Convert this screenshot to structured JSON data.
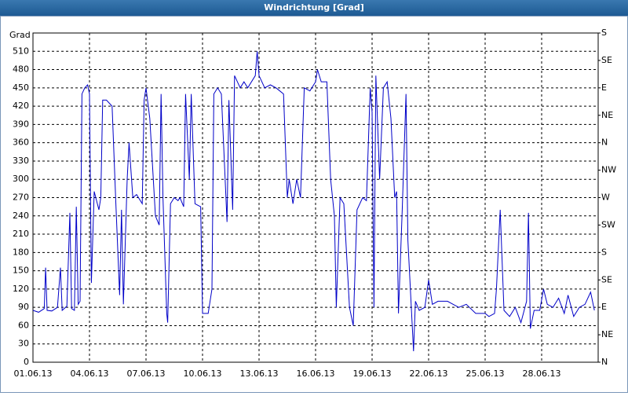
{
  "chart_data": {
    "type": "line",
    "title": "Windrichtung [Grad]",
    "y_label": "Grad",
    "x": [
      0,
      0.3,
      0.6,
      0.67,
      0.75,
      1,
      1.3,
      1.46,
      1.55,
      1.8,
      1.96,
      2.05,
      2.2,
      2.3,
      2.4,
      2.5,
      2.6,
      2.75,
      2.9,
      3,
      3.1,
      3.25,
      3.5,
      3.6,
      3.7,
      3.9,
      4.2,
      4.4,
      4.6,
      4.7,
      4.8,
      5,
      5.1,
      5.3,
      5.5,
      5.8,
      5.9,
      6,
      6.2,
      6.5,
      6.7,
      6.8,
      6.9,
      7.1,
      7.15,
      7.3,
      7.5,
      7.7,
      7.8,
      8,
      8.1,
      8.3,
      8.4,
      8.6,
      8.9,
      9,
      9.3,
      9.5,
      9.6,
      9.8,
      10,
      10.3,
      10.4,
      10.6,
      10.7,
      11,
      11.2,
      11.4,
      11.8,
      11.9,
      12,
      12.3,
      12.6,
      12.9,
      13.1,
      13.3,
      13.5,
      13.6,
      13.8,
      14,
      14.2,
      14.4,
      14.7,
      15,
      15.1,
      15.3,
      15.6,
      15.8,
      16,
      16.1,
      16.3,
      16.5,
      16.8,
      17,
      17.2,
      17.5,
      17.7,
      17.9,
      18,
      18.1,
      18.2,
      18.4,
      18.6,
      18.8,
      19,
      19.2,
      19.3,
      19.4,
      19.6,
      19.8,
      19.9,
      20.2,
      20.3,
      20.5,
      20.8,
      21,
      21.2,
      21.5,
      22,
      22.3,
      22.6,
      23,
      23.5,
      24,
      24.2,
      24.5,
      24.6,
      24.8,
      25,
      25.3,
      25.6,
      25.9,
      26.2,
      26.3,
      26.4,
      26.6,
      26.9,
      27.1,
      27.3,
      27.6,
      27.9,
      28.2,
      28.4,
      28.7,
      29,
      29.3,
      29.6,
      29.8
    ],
    "series": [
      {
        "name": "Windrichtung",
        "color": "#0000c8",
        "values": [
          85,
          82,
          88,
          155,
          85,
          84,
          90,
          155,
          85,
          92,
          245,
          88,
          85,
          255,
          95,
          100,
          440,
          450,
          455,
          440,
          130,
          280,
          250,
          270,
          430,
          430,
          420,
          260,
          110,
          250,
          95,
          300,
          360,
          270,
          275,
          260,
          430,
          450,
          400,
          240,
          225,
          440,
          270,
          80,
          65,
          260,
          270,
          265,
          270,
          255,
          440,
          300,
          440,
          260,
          255,
          80,
          80,
          120,
          440,
          450,
          440,
          230,
          430,
          250,
          470,
          450,
          460,
          450,
          470,
          510,
          470,
          450,
          455,
          450,
          445,
          440,
          270,
          300,
          260,
          300,
          270,
          450,
          445,
          460,
          480,
          460,
          460,
          300,
          240,
          90,
          270,
          260,
          90,
          60,
          250,
          270,
          265,
          450,
          410,
          90,
          470,
          300,
          450,
          460,
          400,
          270,
          280,
          80,
          250,
          440,
          200,
          18,
          100,
          85,
          90,
          135,
          95,
          100,
          100,
          95,
          90,
          95,
          80,
          80,
          75,
          80,
          120,
          250,
          85,
          75,
          90,
          65,
          100,
          245,
          55,
          85,
          85,
          120,
          95,
          90,
          105,
          80,
          110,
          75,
          90,
          95,
          115,
          85
        ]
      }
    ],
    "xlim": [
      0,
      30
    ],
    "xticks": [
      {
        "value": 0,
        "label": "01.06.13"
      },
      {
        "value": 3,
        "label": "04.06.13"
      },
      {
        "value": 6,
        "label": "07.06.13"
      },
      {
        "value": 9,
        "label": "10.06.13"
      },
      {
        "value": 12,
        "label": "13.06.13"
      },
      {
        "value": 15,
        "label": "16.06.13"
      },
      {
        "value": 18,
        "label": "19.06.13"
      },
      {
        "value": 21,
        "label": "22.06.13"
      },
      {
        "value": 24,
        "label": "25.06.13"
      },
      {
        "value": 27,
        "label": "28.06.13"
      }
    ],
    "ylim": [
      0,
      540
    ],
    "yticks": [
      0,
      30,
      60,
      90,
      120,
      150,
      180,
      210,
      240,
      270,
      300,
      330,
      360,
      390,
      420,
      450,
      480,
      510
    ],
    "y2lim": [
      0,
      540
    ],
    "y2ticks": [
      {
        "value": 0,
        "label": "N"
      },
      {
        "value": 45,
        "label": "NE"
      },
      {
        "value": 90,
        "label": "E"
      },
      {
        "value": 135,
        "label": "SE"
      },
      {
        "value": 180,
        "label": "S"
      },
      {
        "value": 225,
        "label": "SW"
      },
      {
        "value": 270,
        "label": "W"
      },
      {
        "value": 315,
        "label": "NW"
      },
      {
        "value": 360,
        "label": "N"
      },
      {
        "value": 405,
        "label": "NE"
      },
      {
        "value": 450,
        "label": "E"
      },
      {
        "value": 495,
        "label": "SE"
      },
      {
        "value": 540,
        "label": "S"
      }
    ],
    "grid": true
  }
}
